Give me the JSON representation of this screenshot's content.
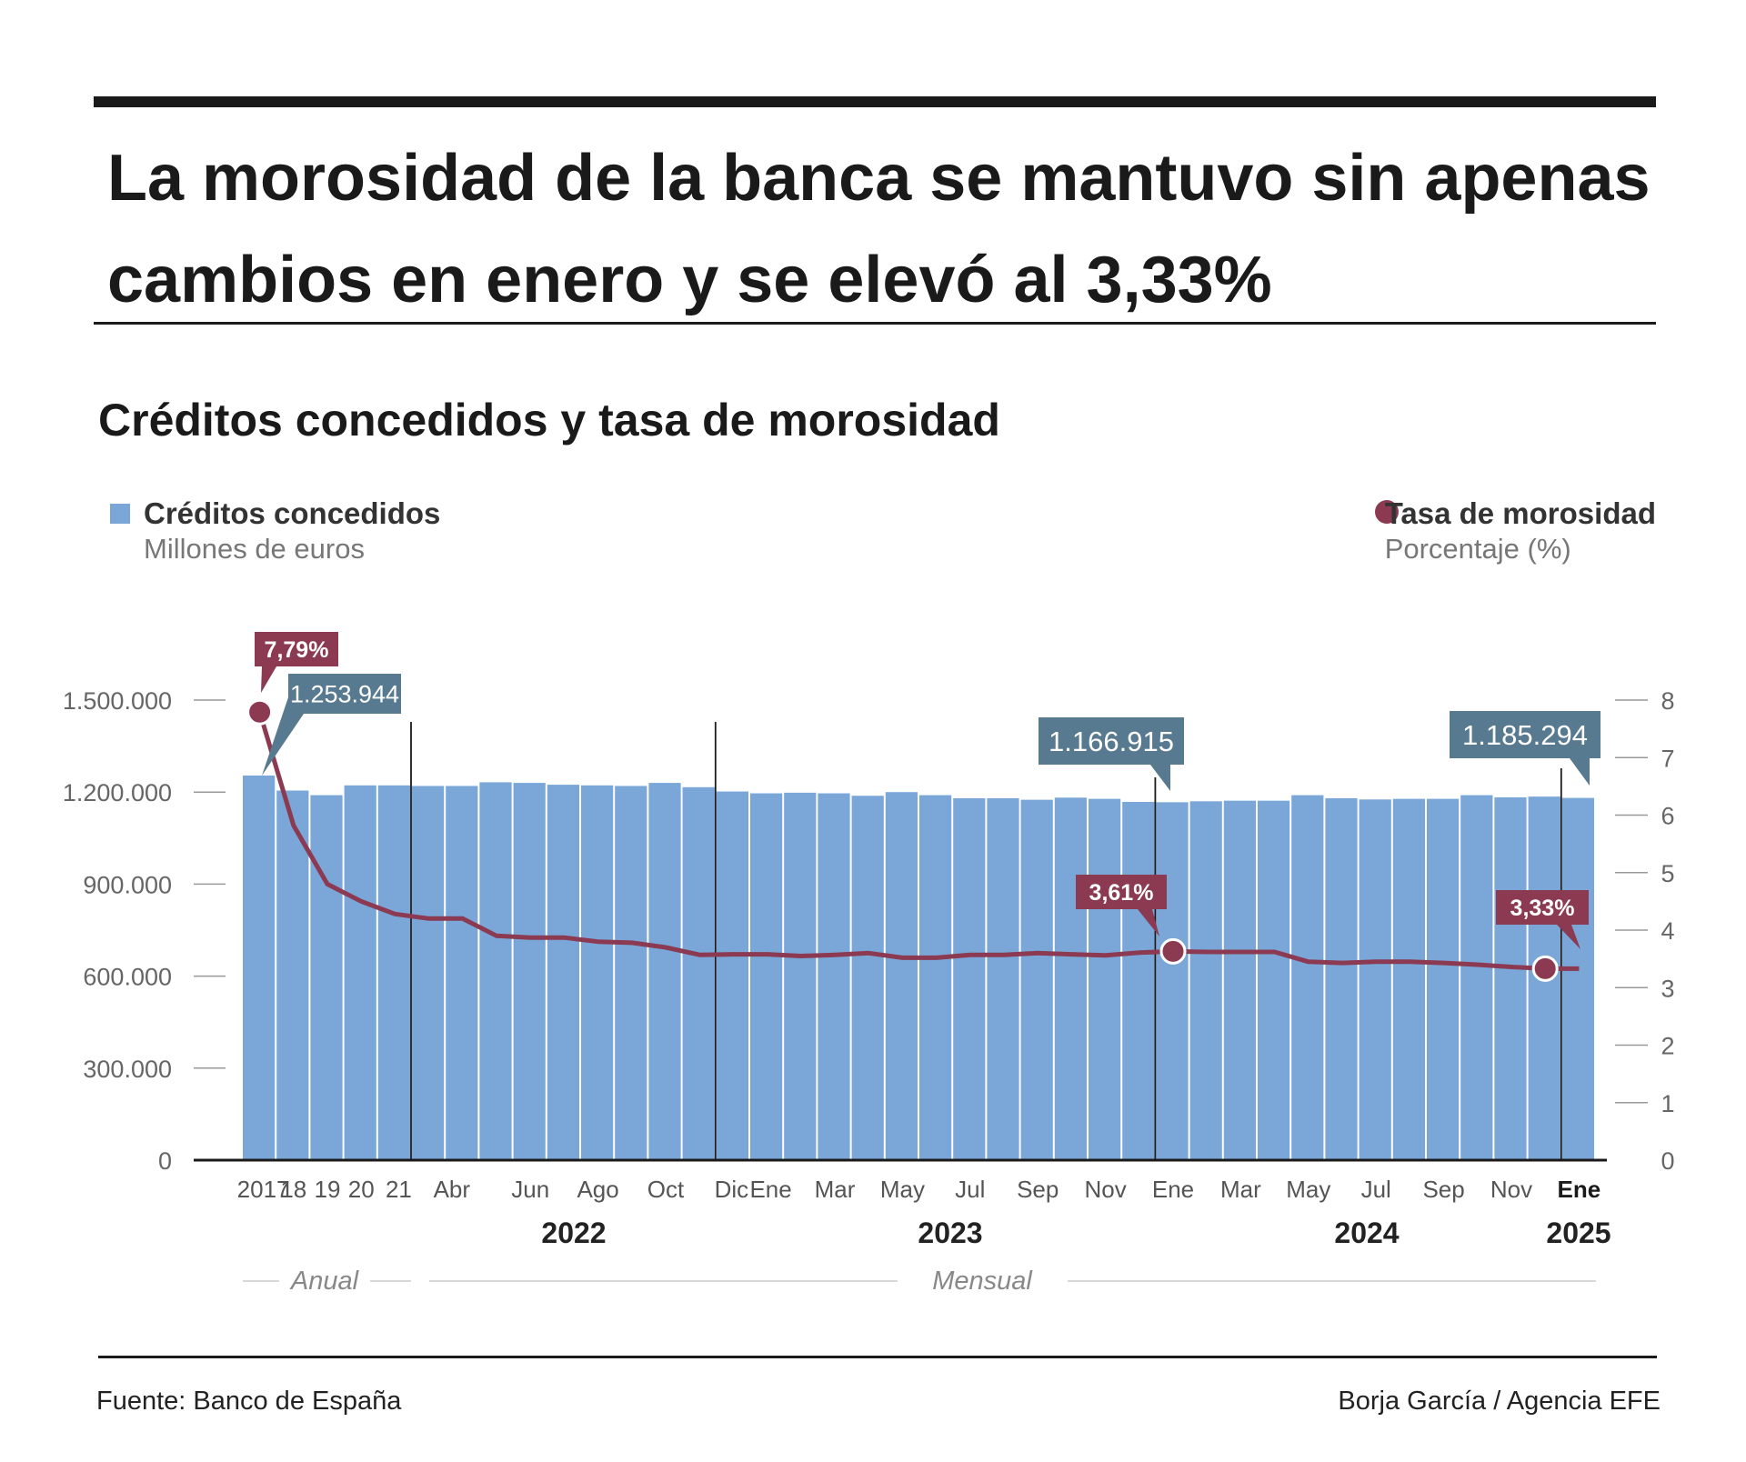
{
  "headline": "La morosidad de la banca se mantuvo sin apenas cambios en enero y se elevó al 3,33%",
  "subtitle": "Créditos concedidos y tasa de morosidad",
  "legend": {
    "bars_name": "Créditos concedidos",
    "bars_unit": "Millones de euros",
    "line_name": "Tasa de morosidad",
    "line_unit": "Porcentaje (%)"
  },
  "footer": {
    "source": "Fuente: Banco de España",
    "credit": "Borja García / Agencia EFE"
  },
  "colors": {
    "bar": "#7aa6d8",
    "line": "#8b3a52",
    "bar_callout": "#587a90",
    "line_callout": "#8b3a52",
    "text": "#1a1a1a"
  },
  "chart_data": {
    "type": "bar",
    "categories": [
      "2017",
      "18",
      "19",
      "20",
      "21",
      "Mar",
      "Abr",
      "May",
      "Jun",
      "Jul",
      "Ago",
      "Sep",
      "Oct",
      "Nov",
      "Dic",
      "Ene",
      "Feb",
      "Mar",
      "Abr",
      "May",
      "Jun",
      "Jul",
      "Ago",
      "Sep",
      "Oct",
      "Nov",
      "Dic",
      "Ene",
      "Feb",
      "Mar",
      "Abr",
      "May",
      "Jun",
      "Jul",
      "Ago",
      "Sep",
      "Oct",
      "Nov",
      "Dic",
      "Ene"
    ],
    "category_tick_labels": [
      "2017",
      "18",
      "19",
      "20",
      "21",
      "Abr",
      "Jun",
      "Ago",
      "Oct",
      "Dic",
      "Ene",
      "Mar",
      "May",
      "Jul",
      "Sep",
      "Nov",
      "Ene",
      "Mar",
      "May",
      "Jul",
      "Sep",
      "Nov",
      "Ene"
    ],
    "year_labels": [
      "2022",
      "2023",
      "2024",
      "2025"
    ],
    "period_labels": [
      "Anual",
      "Mensual"
    ],
    "series": [
      {
        "name": "Créditos concedidos",
        "axis": "left",
        "values": [
          1253944,
          1205000,
          1190000,
          1222000,
          1222000,
          1220000,
          1220000,
          1232000,
          1230000,
          1224000,
          1222000,
          1220000,
          1230000,
          1216000,
          1202000,
          1196000,
          1198000,
          1196000,
          1188000,
          1200000,
          1190000,
          1180000,
          1180000,
          1175000,
          1182000,
          1178000,
          1168000,
          1166915,
          1170000,
          1172000,
          1172000,
          1190000,
          1180000,
          1176000,
          1178000,
          1178000,
          1190000,
          1183000,
          1185294,
          1181000
        ]
      },
      {
        "name": "Tasa de morosidad",
        "axis": "right",
        "values": [
          7.79,
          5.82,
          4.8,
          4.5,
          4.28,
          4.2,
          4.2,
          3.9,
          3.87,
          3.87,
          3.8,
          3.78,
          3.7,
          3.57,
          3.58,
          3.58,
          3.55,
          3.57,
          3.6,
          3.52,
          3.52,
          3.57,
          3.57,
          3.6,
          3.58,
          3.56,
          3.61,
          3.63,
          3.62,
          3.62,
          3.62,
          3.45,
          3.43,
          3.45,
          3.45,
          3.43,
          3.4,
          3.36,
          3.33,
          3.33
        ]
      }
    ],
    "callouts": {
      "bars": [
        "1.253.944",
        "1.166.915",
        "1.185.294"
      ],
      "line": [
        "7,79%",
        "3,61%",
        "3,33%"
      ]
    },
    "left_axis": {
      "ylim": [
        0,
        1500000
      ],
      "ticks": [
        "0",
        "300.000",
        "600.000",
        "900.000",
        "1.200.000",
        "1.500.000"
      ]
    },
    "right_axis": {
      "ylim": [
        0,
        8
      ],
      "ticks": [
        "0",
        "1",
        "2",
        "3",
        "4",
        "5",
        "6",
        "7",
        "8"
      ]
    },
    "grid": false
  }
}
